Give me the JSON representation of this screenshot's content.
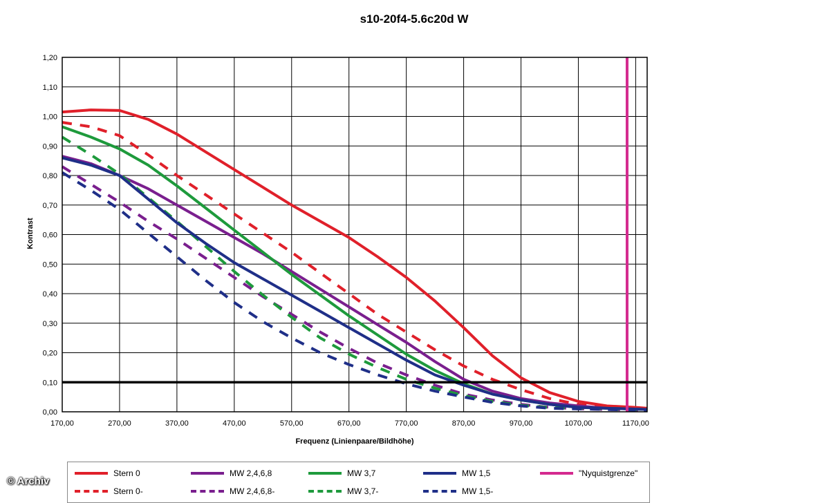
{
  "chart_data": {
    "type": "line",
    "title": "s10-20f4-5.6c20d W",
    "xlabel": "Frequenz (Linienpaare/Bildhöhe)",
    "ylabel": "Kontrast",
    "xlim": [
      170,
      1190
    ],
    "ylim": [
      0,
      1.2
    ],
    "x_ticks": [
      "170,00",
      "270,00",
      "370,00",
      "470,00",
      "570,00",
      "670,00",
      "770,00",
      "870,00",
      "970,00",
      "1070,00",
      "1170,00"
    ],
    "y_ticks": [
      "0,00",
      "0,10",
      "0,20",
      "0,30",
      "0,40",
      "0,50",
      "0,60",
      "0,70",
      "0,80",
      "0,90",
      "1,00",
      "1,10",
      "1,20"
    ],
    "grid": true,
    "reference_line": 0.1,
    "nyquist_x": 1155,
    "legend_position": "bottom",
    "series": [
      {
        "name": "Stern 0",
        "color": "#e0202a",
        "dash": false,
        "points": [
          [
            170,
            1.015
          ],
          [
            220,
            1.022
          ],
          [
            270,
            1.02
          ],
          [
            320,
            0.99
          ],
          [
            370,
            0.94
          ],
          [
            420,
            0.88
          ],
          [
            470,
            0.82
          ],
          [
            520,
            0.76
          ],
          [
            570,
            0.7
          ],
          [
            620,
            0.645
          ],
          [
            670,
            0.59
          ],
          [
            720,
            0.525
          ],
          [
            770,
            0.455
          ],
          [
            820,
            0.375
          ],
          [
            870,
            0.285
          ],
          [
            920,
            0.19
          ],
          [
            970,
            0.115
          ],
          [
            1020,
            0.065
          ],
          [
            1070,
            0.035
          ],
          [
            1120,
            0.02
          ],
          [
            1170,
            0.015
          ],
          [
            1190,
            0.012
          ]
        ]
      },
      {
        "name": "Stern 0-",
        "color": "#e0202a",
        "dash": true,
        "points": [
          [
            170,
            0.98
          ],
          [
            220,
            0.965
          ],
          [
            270,
            0.935
          ],
          [
            320,
            0.87
          ],
          [
            370,
            0.8
          ],
          [
            420,
            0.735
          ],
          [
            470,
            0.67
          ],
          [
            520,
            0.605
          ],
          [
            570,
            0.54
          ],
          [
            620,
            0.47
          ],
          [
            670,
            0.4
          ],
          [
            720,
            0.33
          ],
          [
            770,
            0.27
          ],
          [
            820,
            0.21
          ],
          [
            870,
            0.155
          ],
          [
            920,
            0.11
          ],
          [
            970,
            0.075
          ],
          [
            1020,
            0.045
          ],
          [
            1070,
            0.025
          ],
          [
            1120,
            0.015
          ],
          [
            1190,
            0.01
          ]
        ]
      },
      {
        "name": "MW 2,4,6,8",
        "color": "#7a1f8e",
        "dash": false,
        "points": [
          [
            170,
            0.865
          ],
          [
            220,
            0.84
          ],
          [
            270,
            0.8
          ],
          [
            320,
            0.755
          ],
          [
            370,
            0.7
          ],
          [
            420,
            0.645
          ],
          [
            470,
            0.59
          ],
          [
            520,
            0.535
          ],
          [
            570,
            0.475
          ],
          [
            620,
            0.415
          ],
          [
            670,
            0.355
          ],
          [
            720,
            0.295
          ],
          [
            770,
            0.235
          ],
          [
            820,
            0.17
          ],
          [
            870,
            0.11
          ],
          [
            920,
            0.07
          ],
          [
            970,
            0.045
          ],
          [
            1020,
            0.03
          ],
          [
            1070,
            0.02
          ],
          [
            1120,
            0.012
          ],
          [
            1190,
            0.008
          ]
        ]
      },
      {
        "name": "MW 2,4,6,8-",
        "color": "#7a1f8e",
        "dash": true,
        "points": [
          [
            170,
            0.83
          ],
          [
            220,
            0.77
          ],
          [
            270,
            0.71
          ],
          [
            320,
            0.645
          ],
          [
            370,
            0.585
          ],
          [
            420,
            0.52
          ],
          [
            470,
            0.455
          ],
          [
            520,
            0.39
          ],
          [
            570,
            0.33
          ],
          [
            620,
            0.27
          ],
          [
            670,
            0.215
          ],
          [
            720,
            0.165
          ],
          [
            770,
            0.125
          ],
          [
            820,
            0.09
          ],
          [
            870,
            0.06
          ],
          [
            920,
            0.04
          ],
          [
            970,
            0.025
          ],
          [
            1020,
            0.015
          ],
          [
            1070,
            0.01
          ],
          [
            1190,
            0.005
          ]
        ]
      },
      {
        "name": "MW 3,7",
        "color": "#1e9a3c",
        "dash": false,
        "points": [
          [
            170,
            0.965
          ],
          [
            220,
            0.93
          ],
          [
            270,
            0.89
          ],
          [
            320,
            0.835
          ],
          [
            370,
            0.765
          ],
          [
            420,
            0.69
          ],
          [
            470,
            0.615
          ],
          [
            520,
            0.54
          ],
          [
            570,
            0.465
          ],
          [
            620,
            0.395
          ],
          [
            670,
            0.325
          ],
          [
            720,
            0.26
          ],
          [
            770,
            0.195
          ],
          [
            820,
            0.14
          ],
          [
            870,
            0.095
          ],
          [
            920,
            0.06
          ],
          [
            970,
            0.04
          ],
          [
            1020,
            0.025
          ],
          [
            1070,
            0.015
          ],
          [
            1190,
            0.008
          ]
        ]
      },
      {
        "name": "MW 3,7-",
        "color": "#1e9a3c",
        "dash": true,
        "points": [
          [
            170,
            0.93
          ],
          [
            220,
            0.87
          ],
          [
            270,
            0.805
          ],
          [
            320,
            0.725
          ],
          [
            370,
            0.645
          ],
          [
            420,
            0.56
          ],
          [
            470,
            0.475
          ],
          [
            520,
            0.395
          ],
          [
            570,
            0.32
          ],
          [
            620,
            0.25
          ],
          [
            670,
            0.195
          ],
          [
            720,
            0.15
          ],
          [
            770,
            0.11
          ],
          [
            820,
            0.08
          ],
          [
            870,
            0.055
          ],
          [
            920,
            0.035
          ],
          [
            970,
            0.022
          ],
          [
            1020,
            0.014
          ],
          [
            1190,
            0.006
          ]
        ]
      },
      {
        "name": "MW 1,5",
        "color": "#1f2f88",
        "dash": false,
        "points": [
          [
            170,
            0.86
          ],
          [
            220,
            0.835
          ],
          [
            270,
            0.8
          ],
          [
            320,
            0.72
          ],
          [
            370,
            0.64
          ],
          [
            420,
            0.57
          ],
          [
            470,
            0.505
          ],
          [
            520,
            0.45
          ],
          [
            570,
            0.395
          ],
          [
            620,
            0.34
          ],
          [
            670,
            0.285
          ],
          [
            720,
            0.23
          ],
          [
            770,
            0.175
          ],
          [
            820,
            0.125
          ],
          [
            870,
            0.09
          ],
          [
            920,
            0.06
          ],
          [
            970,
            0.04
          ],
          [
            1020,
            0.025
          ],
          [
            1070,
            0.015
          ],
          [
            1190,
            0.008
          ]
        ]
      },
      {
        "name": "MW 1,5-",
        "color": "#1f2f88",
        "dash": true,
        "points": [
          [
            170,
            0.81
          ],
          [
            220,
            0.75
          ],
          [
            270,
            0.685
          ],
          [
            320,
            0.605
          ],
          [
            370,
            0.525
          ],
          [
            420,
            0.445
          ],
          [
            470,
            0.37
          ],
          [
            520,
            0.305
          ],
          [
            570,
            0.25
          ],
          [
            620,
            0.2
          ],
          [
            670,
            0.16
          ],
          [
            720,
            0.125
          ],
          [
            770,
            0.095
          ],
          [
            820,
            0.07
          ],
          [
            870,
            0.05
          ],
          [
            920,
            0.032
          ],
          [
            970,
            0.02
          ],
          [
            1020,
            0.012
          ],
          [
            1190,
            0.005
          ]
        ]
      },
      {
        "name": "\"Nyquistgrenze\"",
        "color": "#d42a8f",
        "dash": false,
        "vertical_x": 1155
      }
    ]
  },
  "watermark": "© Archiv"
}
